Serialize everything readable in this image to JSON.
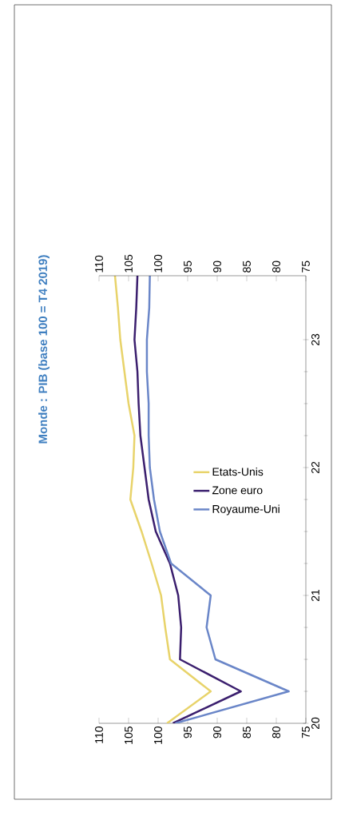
{
  "chart_data": {
    "type": "line",
    "title": "Monde : PIB (base 100 = T4 2019)",
    "series": [
      {
        "name": "Etats-Unis",
        "color": "#e8d36a",
        "x": [
          98.5,
          91.1,
          98.0,
          98.8,
          99.5,
          101.1,
          102.8,
          104.7,
          104.2,
          104.0,
          105.0,
          105.7,
          106.4,
          106.8,
          107.3
        ],
        "values": [
          20,
          20.25,
          20.5,
          20.75,
          21,
          21.25,
          21.5,
          21.75,
          22,
          22.25,
          22.5,
          22.75,
          23,
          23.25,
          23.5
        ]
      },
      {
        "name": "Zone euro",
        "color": "#3b1f6e",
        "x": [
          97.5,
          86.0,
          96.3,
          96.1,
          96.6,
          98.0,
          100.4,
          101.6,
          102.3,
          103.0,
          103.3,
          103.5,
          104.0,
          103.7,
          103.5
        ],
        "values": [
          20,
          20.25,
          20.5,
          20.75,
          21,
          21.25,
          21.5,
          21.75,
          22,
          22.25,
          22.5,
          22.75,
          23,
          23.25,
          23.5
        ]
      },
      {
        "name": "Royaume-Uni",
        "color": "#6a86c8",
        "x": [
          97.1,
          77.9,
          90.3,
          91.8,
          91.1,
          97.8,
          99.7,
          100.7,
          101.4,
          101.6,
          101.6,
          101.9,
          101.9,
          101.5,
          101.4
        ],
        "values": [
          20,
          20.25,
          20.5,
          20.75,
          21,
          21.25,
          21.5,
          21.75,
          22,
          22.25,
          22.5,
          22.75,
          23,
          23.25,
          23.5
        ]
      }
    ],
    "xlim": [
      110,
      75
    ],
    "xticks": [
      110,
      105,
      100,
      95,
      90,
      85,
      80,
      75
    ],
    "x2lim": [
      110,
      75
    ],
    "x2ticks": [
      110,
      105,
      100,
      95,
      90,
      85,
      80,
      75
    ],
    "ylim": [
      20,
      23.5
    ],
    "yticks": [
      20,
      21,
      22,
      23
    ],
    "legend": "top right",
    "grid": false,
    "marker": "none",
    "line_style": "solid"
  }
}
